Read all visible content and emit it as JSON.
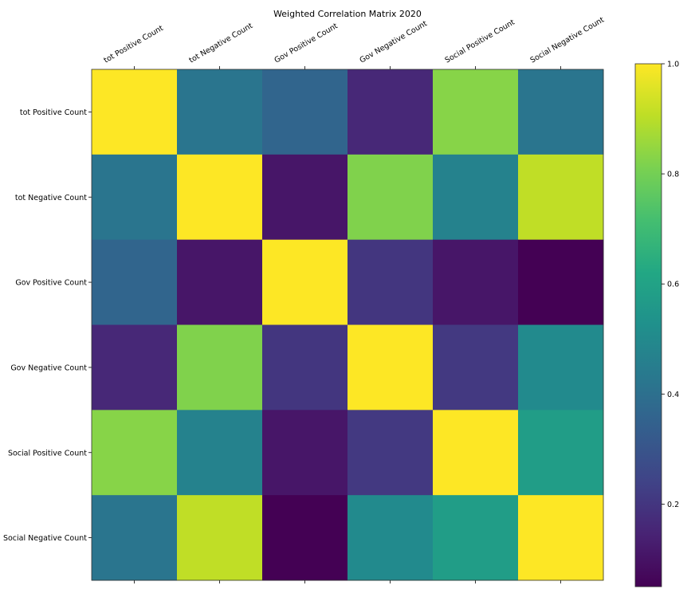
{
  "chart_data": {
    "type": "heatmap",
    "title": "Weighted Correlation Matrix 2020",
    "labels": [
      "tot Positive Count",
      "tot Negative Count",
      "Gov Positive Count",
      "Gov Negative Count",
      "Social Positive Count",
      "Social Negative Count"
    ],
    "values": [
      [
        1.0,
        0.42,
        0.36,
        0.16,
        0.83,
        0.42
      ],
      [
        0.42,
        1.0,
        0.11,
        0.82,
        0.47,
        0.91
      ],
      [
        0.36,
        0.11,
        1.0,
        0.2,
        0.11,
        0.05
      ],
      [
        0.16,
        0.82,
        0.2,
        1.0,
        0.21,
        0.5
      ],
      [
        0.83,
        0.47,
        0.11,
        0.21,
        1.0,
        0.58
      ],
      [
        0.42,
        0.91,
        0.05,
        0.5,
        0.58,
        1.0
      ]
    ],
    "colormap": "viridis",
    "vmin": 0.05,
    "vmax": 1.0,
    "colorbar_ticks": [
      0.2,
      0.4,
      0.6,
      0.8,
      1.0
    ],
    "colorbar_tick_labels": [
      "0.2",
      "0.4",
      "0.6",
      "0.8",
      "1.0"
    ]
  }
}
